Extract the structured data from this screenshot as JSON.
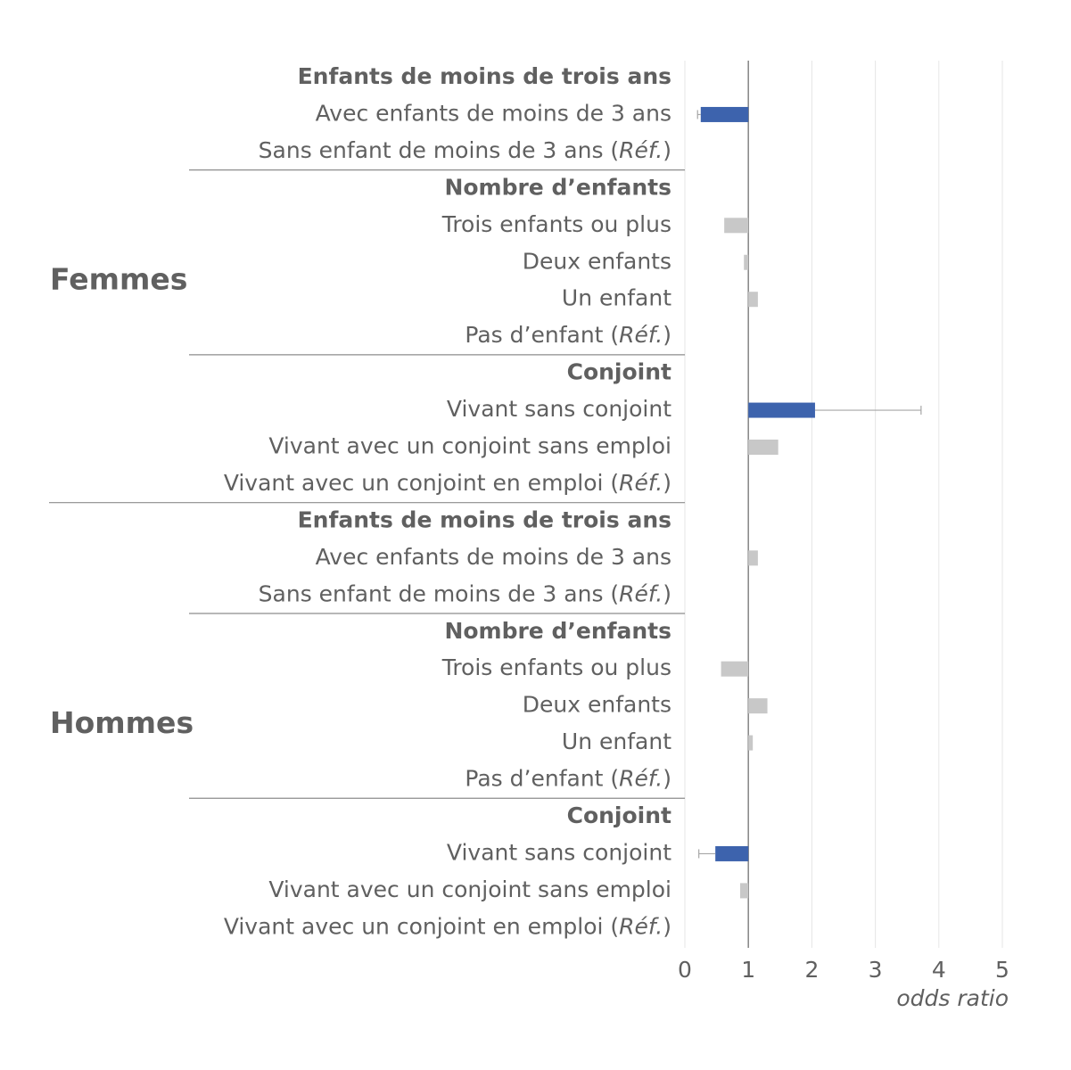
{
  "chart_data": {
    "type": "bar",
    "orientation": "horizontal",
    "xlabel": "odds ratio",
    "xlim": [
      0,
      5
    ],
    "xticks": [
      0,
      1,
      2,
      3,
      4,
      5
    ],
    "reference_value": 1,
    "grid": true,
    "ref_suffix": "Réf.",
    "colors": {
      "significant": "#3d63ad",
      "not_significant": "#c8c8c8",
      "error_bar": "#a6a6a6"
    },
    "groups": [
      {
        "label": "Femmes",
        "sections": [
          {
            "header": "Enfants de moins de trois ans",
            "rows": [
              {
                "label": "Avec enfants de moins de 3 ans",
                "value": 0.25,
                "significant": true,
                "ci_low": 0.2,
                "ci_high": 0.25
              },
              {
                "label": "Sans enfant de moins de 3 ans (",
                "ref": true,
                "value": null
              }
            ]
          },
          {
            "header": "Nombre d’enfants",
            "rows": [
              {
                "label": "Trois enfants ou plus",
                "value": 0.62,
                "significant": false
              },
              {
                "label": "Deux enfants",
                "value": 0.93,
                "significant": false
              },
              {
                "label": "Un enfant",
                "value": 1.15,
                "significant": false
              },
              {
                "label": "Pas d’enfant (",
                "ref": true,
                "value": null
              }
            ]
          },
          {
            "header": "Conjoint",
            "rows": [
              {
                "label": "Vivant sans conjoint",
                "value": 2.05,
                "significant": true,
                "ci_low": 2.05,
                "ci_high": 3.72
              },
              {
                "label": "Vivant avec un conjoint sans emploi",
                "value": 1.47,
                "significant": false
              },
              {
                "label": "Vivant avec un conjoint en emploi  (",
                "ref": true,
                "value": null
              }
            ]
          }
        ]
      },
      {
        "label": "Hommes",
        "sections": [
          {
            "header": "Enfants de moins de trois ans",
            "rows": [
              {
                "label": "Avec enfants de moins de 3 ans",
                "value": 1.15,
                "significant": false
              },
              {
                "label": "Sans enfant de moins de 3 ans (",
                "ref": true,
                "value": null
              }
            ]
          },
          {
            "header": "Nombre d’enfants",
            "rows": [
              {
                "label": "Trois enfants ou plus",
                "value": 0.57,
                "significant": false
              },
              {
                "label": "Deux enfants",
                "value": 1.3,
                "significant": false
              },
              {
                "label": "Un enfant",
                "value": 1.07,
                "significant": false
              },
              {
                "label": "Pas d’enfant (",
                "ref": true,
                "value": null
              }
            ]
          },
          {
            "header": "Conjoint",
            "rows": [
              {
                "label": "Vivant sans conjoint",
                "value": 0.48,
                "significant": true,
                "ci_low": 0.22,
                "ci_high": 0.48
              },
              {
                "label": "Vivant avec un conjoint sans emploi",
                "value": 0.87,
                "significant": false
              },
              {
                "label": "Vivant avec un conjoint en emploi  (",
                "ref": true,
                "value": null
              }
            ]
          }
        ]
      }
    ]
  }
}
